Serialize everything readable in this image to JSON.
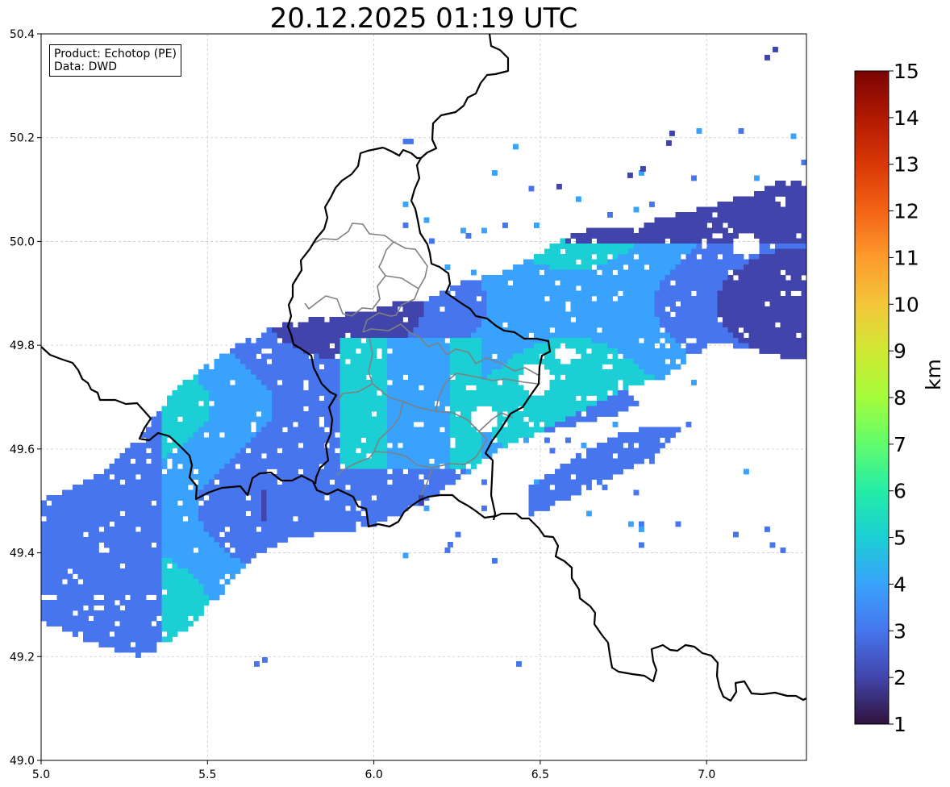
{
  "title": "20.12.2025 01:19 UTC",
  "info": {
    "product": "Product: Echotop (PE)",
    "source": "Data: DWD"
  },
  "map": {
    "lon_range": [
      5.0,
      7.3
    ],
    "lat_range": [
      49.0,
      50.4
    ],
    "x_ticks": [
      "5.0",
      "5.5",
      "6.0",
      "6.5",
      "7.0"
    ],
    "y_ticks": [
      "49.0",
      "49.2",
      "49.4",
      "49.6",
      "49.8",
      "50.0",
      "50.2",
      "50.4"
    ],
    "grid": true,
    "boundary_color": "#000000",
    "admin_boundary_color": "#808080"
  },
  "colorbar": {
    "unit": "km",
    "min": 1,
    "max": 15,
    "ticks": [
      "1",
      "2",
      "3",
      "4",
      "5",
      "6",
      "7",
      "8",
      "9",
      "10",
      "11",
      "12",
      "13",
      "14",
      "15"
    ],
    "colormap": "turbo",
    "colors": [
      "#30123b",
      "#4145ab",
      "#4675ed",
      "#39a2fc",
      "#1bcfd4",
      "#24eca6",
      "#61fc6c",
      "#a4fc3b",
      "#d1e834",
      "#f3c63a",
      "#fe9b2d",
      "#f36315",
      "#d93806",
      "#b11901",
      "#7a0402"
    ]
  }
}
